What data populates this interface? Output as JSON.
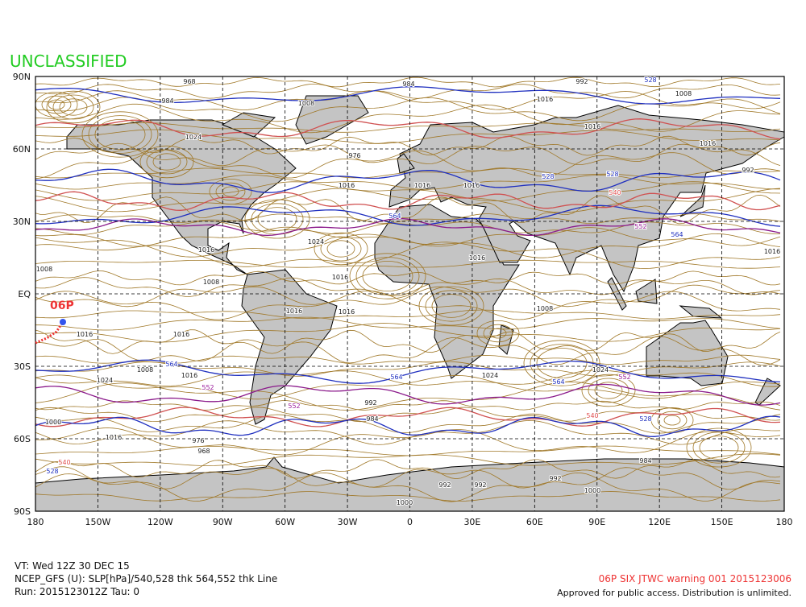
{
  "header": {
    "classification": "UNCLASSIFIED"
  },
  "map": {
    "lat_labels": [
      "90N",
      "60N",
      "30N",
      "EQ",
      "30S",
      "60S",
      "90S"
    ],
    "lon_labels": [
      "180",
      "150W",
      "120W",
      "90W",
      "60W",
      "30W",
      "0",
      "30E",
      "60E",
      "90E",
      "120E",
      "150E",
      "180"
    ],
    "storm_label": "06P",
    "contour_labels": [
      "968",
      "984",
      "1008",
      "984",
      "992",
      "528",
      "1008",
      "1016",
      "1016",
      "1016",
      "992",
      "976",
      "1024",
      "1016",
      "1016",
      "1016",
      "528",
      "528",
      "540",
      "552",
      "564",
      "564",
      "1024",
      "1016",
      "1008",
      "1008",
      "1016",
      "1016",
      "1008",
      "1016",
      "1016",
      "1016",
      "1016",
      "1016",
      "1024",
      "1016",
      "1008",
      "564",
      "564",
      "1024",
      "564",
      "552",
      "1024",
      "552",
      "552",
      "540",
      "528",
      "992",
      "984",
      "1000",
      "1016",
      "976",
      "968",
      "992",
      "992",
      "992",
      "1000",
      "984",
      "1000",
      "528",
      "540"
    ]
  },
  "footer": {
    "valid_time": "VT: Wed 12Z 30 DEC 15",
    "model": "NCEP_GFS (U): SLP[hPa]/540,528 thk 564,552 thk Line",
    "run": "Run: 2015123012Z Tau: 0",
    "warning": "06P SIX JTWC warning 001 2015123006",
    "release": "Approved for public access. Distribution is unlimited."
  }
}
